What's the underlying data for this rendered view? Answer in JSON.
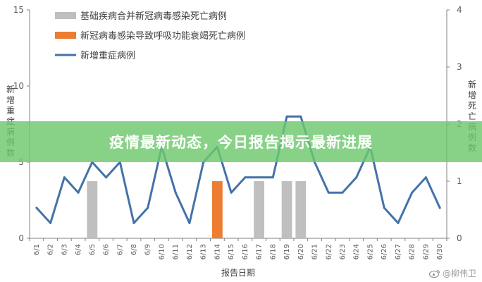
{
  "chart_data": {
    "type": "bar+line",
    "categories": [
      "6/1",
      "6/2",
      "6/3",
      "6/4",
      "6/5",
      "6/6",
      "6/7",
      "6/8",
      "6/9",
      "6/10",
      "6/11",
      "6/12",
      "6/13",
      "6/14",
      "6/15",
      "6/16",
      "6/17",
      "6/18",
      "6/19",
      "6/20",
      "6/21",
      "6/22",
      "6/23",
      "6/24",
      "6/25",
      "6/26",
      "6/27",
      "6/28",
      "6/29",
      "6/30"
    ],
    "xlabel": "报告日期",
    "ylabel_left": "新增重症病例数",
    "ylabel_right": "新增死亡病例数",
    "ylim_left": [
      0,
      15
    ],
    "yticks_left": [
      0,
      5,
      10,
      15
    ],
    "ylim_right": [
      0,
      4
    ],
    "yticks_right": [
      0,
      1,
      2,
      3,
      4
    ],
    "grid": false,
    "legend_position": "top-left",
    "series": [
      {
        "name": "基础疾病合并新冠病毒感染死亡病例",
        "kind": "bar",
        "axis": "right",
        "color": "#bfbfbf",
        "values": [
          0,
          0,
          0,
          0,
          1,
          0,
          0,
          0,
          0,
          0,
          0,
          0,
          0,
          0,
          0,
          0,
          1,
          0,
          1,
          1,
          0,
          0,
          0,
          0,
          0,
          0,
          0,
          0,
          0,
          0
        ]
      },
      {
        "name": "新冠病毒感染导致呼吸功能衰竭死亡病例",
        "kind": "bar",
        "axis": "right",
        "color": "#ed7d31",
        "values": [
          0,
          0,
          0,
          0,
          0,
          0,
          0,
          0,
          0,
          0,
          0,
          0,
          0,
          1,
          0,
          0,
          0,
          0,
          0,
          0,
          0,
          0,
          0,
          0,
          0,
          0,
          0,
          0,
          0,
          0
        ]
      },
      {
        "name": "新增重症病例",
        "kind": "line",
        "axis": "left",
        "color": "#4472a8",
        "values": [
          2,
          1,
          4,
          3,
          5,
          4,
          5,
          1,
          2,
          6,
          3,
          1,
          5,
          6,
          3,
          4,
          4,
          4,
          8,
          8,
          5,
          3,
          3,
          4,
          6,
          2,
          1,
          3,
          4,
          2
        ]
      }
    ]
  },
  "banner": {
    "text": "疫情最新动态，今日报告揭示最新进展"
  },
  "watermark": {
    "text": "@柳伟卫"
  }
}
